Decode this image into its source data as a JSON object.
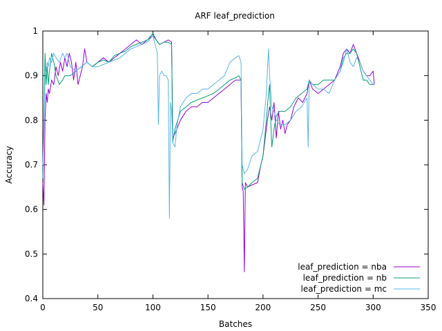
{
  "chart_data": {
    "type": "line",
    "title": "ARF leaf_prediction",
    "xlabel": "Batches",
    "ylabel": "Accuracy",
    "xlim": [
      0,
      350
    ],
    "ylim": [
      0.4,
      1.0
    ],
    "xticks": [
      0,
      50,
      100,
      150,
      200,
      250,
      300,
      350
    ],
    "yticks": [
      0.4,
      0.5,
      0.6,
      0.7,
      0.8,
      0.9,
      1.0
    ],
    "ytick_labels": [
      "0.4",
      "0.5",
      "0.6",
      "0.7",
      "0.8",
      "0.9",
      "1"
    ],
    "grid": false,
    "legend_position": "bottom-right",
    "series": [
      {
        "name": "leaf_prediction = nba",
        "color": "#9400d3",
        "points": [
          [
            0,
            0.66
          ],
          [
            1,
            0.61
          ],
          [
            2,
            0.8
          ],
          [
            3,
            0.86
          ],
          [
            4,
            0.84
          ],
          [
            5,
            0.87
          ],
          [
            6,
            0.86
          ],
          [
            8,
            0.89
          ],
          [
            10,
            0.88
          ],
          [
            12,
            0.92
          ],
          [
            14,
            0.9
          ],
          [
            16,
            0.93
          ],
          [
            18,
            0.91
          ],
          [
            20,
            0.94
          ],
          [
            22,
            0.92
          ],
          [
            24,
            0.95
          ],
          [
            26,
            0.93
          ],
          [
            28,
            0.89
          ],
          [
            30,
            0.93
          ],
          [
            32,
            0.88
          ],
          [
            34,
            0.9
          ],
          [
            36,
            0.92
          ],
          [
            38,
            0.96
          ],
          [
            40,
            0.93
          ],
          [
            45,
            0.92
          ],
          [
            50,
            0.93
          ],
          [
            55,
            0.94
          ],
          [
            60,
            0.93
          ],
          [
            65,
            0.94
          ],
          [
            70,
            0.95
          ],
          [
            75,
            0.96
          ],
          [
            80,
            0.97
          ],
          [
            85,
            0.98
          ],
          [
            90,
            0.97
          ],
          [
            95,
            0.98
          ],
          [
            100,
            0.99
          ],
          [
            103,
            0.98
          ],
          [
            106,
            0.97
          ],
          [
            110,
            0.975
          ],
          [
            114,
            0.98
          ],
          [
            117,
            0.975
          ],
          [
            118,
            0.76
          ],
          [
            120,
            0.77
          ],
          [
            125,
            0.8
          ],
          [
            130,
            0.82
          ],
          [
            135,
            0.83
          ],
          [
            140,
            0.83
          ],
          [
            145,
            0.84
          ],
          [
            150,
            0.84
          ],
          [
            155,
            0.85
          ],
          [
            160,
            0.86
          ],
          [
            165,
            0.87
          ],
          [
            170,
            0.88
          ],
          [
            175,
            0.89
          ],
          [
            178,
            0.89
          ],
          [
            180,
            0.89
          ],
          [
            181,
            0.65
          ],
          [
            182,
            0.64
          ],
          [
            183,
            0.46
          ],
          [
            184,
            0.66
          ],
          [
            186,
            0.65
          ],
          [
            190,
            0.655
          ],
          [
            195,
            0.66
          ],
          [
            198,
            0.7
          ],
          [
            200,
            0.72
          ],
          [
            202,
            0.76
          ],
          [
            204,
            0.8
          ],
          [
            206,
            0.83
          ],
          [
            208,
            0.8
          ],
          [
            210,
            0.84
          ],
          [
            212,
            0.76
          ],
          [
            214,
            0.82
          ],
          [
            216,
            0.78
          ],
          [
            218,
            0.8
          ],
          [
            220,
            0.77
          ],
          [
            222,
            0.79
          ],
          [
            225,
            0.8
          ],
          [
            228,
            0.83
          ],
          [
            232,
            0.85
          ],
          [
            236,
            0.84
          ],
          [
            240,
            0.86
          ],
          [
            242,
            0.89
          ],
          [
            245,
            0.87
          ],
          [
            250,
            0.86
          ],
          [
            255,
            0.87
          ],
          [
            260,
            0.88
          ],
          [
            265,
            0.89
          ],
          [
            270,
            0.92
          ],
          [
            273,
            0.95
          ],
          [
            276,
            0.96
          ],
          [
            279,
            0.95
          ],
          [
            282,
            0.97
          ],
          [
            285,
            0.95
          ],
          [
            288,
            0.93
          ],
          [
            291,
            0.91
          ],
          [
            294,
            0.9
          ],
          [
            297,
            0.9
          ],
          [
            300,
            0.91
          ],
          [
            301,
            0.88
          ]
        ]
      },
      {
        "name": "leaf_prediction = nb",
        "color": "#009e73",
        "points": [
          [
            0,
            0.67
          ],
          [
            1,
            0.8
          ],
          [
            2,
            0.95
          ],
          [
            3,
            0.88
          ],
          [
            4,
            0.92
          ],
          [
            5,
            0.88
          ],
          [
            6,
            0.91
          ],
          [
            8,
            0.95
          ],
          [
            10,
            0.93
          ],
          [
            12,
            0.9
          ],
          [
            15,
            0.88
          ],
          [
            18,
            0.89
          ],
          [
            20,
            0.9
          ],
          [
            25,
            0.9
          ],
          [
            30,
            0.91
          ],
          [
            35,
            0.92
          ],
          [
            40,
            0.93
          ],
          [
            45,
            0.92
          ],
          [
            50,
            0.93
          ],
          [
            55,
            0.935
          ],
          [
            60,
            0.93
          ],
          [
            65,
            0.945
          ],
          [
            70,
            0.95
          ],
          [
            75,
            0.955
          ],
          [
            80,
            0.965
          ],
          [
            85,
            0.97
          ],
          [
            90,
            0.975
          ],
          [
            95,
            0.98
          ],
          [
            100,
            0.995
          ],
          [
            103,
            0.98
          ],
          [
            106,
            0.97
          ],
          [
            110,
            0.975
          ],
          [
            114,
            0.975
          ],
          [
            117,
            0.97
          ],
          [
            118,
            0.75
          ],
          [
            120,
            0.78
          ],
          [
            125,
            0.82
          ],
          [
            130,
            0.83
          ],
          [
            135,
            0.84
          ],
          [
            140,
            0.845
          ],
          [
            145,
            0.85
          ],
          [
            150,
            0.855
          ],
          [
            155,
            0.86
          ],
          [
            160,
            0.87
          ],
          [
            165,
            0.88
          ],
          [
            170,
            0.89
          ],
          [
            175,
            0.895
          ],
          [
            178,
            0.9
          ],
          [
            180,
            0.89
          ],
          [
            181,
            0.66
          ],
          [
            183,
            0.645
          ],
          [
            186,
            0.65
          ],
          [
            190,
            0.66
          ],
          [
            195,
            0.67
          ],
          [
            200,
            0.72
          ],
          [
            203,
            0.8
          ],
          [
            205,
            0.86
          ],
          [
            206,
            0.88
          ],
          [
            207,
            0.8
          ],
          [
            208,
            0.74
          ],
          [
            210,
            0.78
          ],
          [
            212,
            0.81
          ],
          [
            215,
            0.82
          ],
          [
            220,
            0.82
          ],
          [
            225,
            0.83
          ],
          [
            230,
            0.85
          ],
          [
            235,
            0.86
          ],
          [
            240,
            0.87
          ],
          [
            242,
            0.89
          ],
          [
            245,
            0.88
          ],
          [
            250,
            0.88
          ],
          [
            255,
            0.89
          ],
          [
            260,
            0.89
          ],
          [
            265,
            0.89
          ],
          [
            270,
            0.91
          ],
          [
            273,
            0.94
          ],
          [
            276,
            0.95
          ],
          [
            279,
            0.95
          ],
          [
            282,
            0.96
          ],
          [
            285,
            0.95
          ],
          [
            288,
            0.92
          ],
          [
            291,
            0.89
          ],
          [
            294,
            0.89
          ],
          [
            297,
            0.88
          ],
          [
            300,
            0.88
          ],
          [
            301,
            0.88
          ]
        ]
      },
      {
        "name": "leaf_prediction = mc",
        "color": "#56b4e9",
        "points": [
          [
            0,
            0.7
          ],
          [
            1,
            0.78
          ],
          [
            2,
            0.9
          ],
          [
            3,
            0.91
          ],
          [
            4,
            0.93
          ],
          [
            5,
            0.92
          ],
          [
            6,
            0.94
          ],
          [
            8,
            0.93
          ],
          [
            10,
            0.95
          ],
          [
            12,
            0.94
          ],
          [
            15,
            0.93
          ],
          [
            18,
            0.95
          ],
          [
            20,
            0.94
          ],
          [
            22,
            0.95
          ],
          [
            25,
            0.92
          ],
          [
            30,
            0.91
          ],
          [
            35,
            0.92
          ],
          [
            40,
            0.93
          ],
          [
            45,
            0.92
          ],
          [
            50,
            0.92
          ],
          [
            55,
            0.925
          ],
          [
            60,
            0.93
          ],
          [
            65,
            0.935
          ],
          [
            70,
            0.94
          ],
          [
            75,
            0.95
          ],
          [
            80,
            0.96
          ],
          [
            85,
            0.965
          ],
          [
            90,
            0.97
          ],
          [
            95,
            0.975
          ],
          [
            100,
            0.99
          ],
          [
            102,
            0.97
          ],
          [
            104,
            0.95
          ],
          [
            105,
            0.79
          ],
          [
            106,
            0.9
          ],
          [
            108,
            0.91
          ],
          [
            110,
            0.9
          ],
          [
            112,
            0.9
          ],
          [
            114,
            0.89
          ],
          [
            115,
            0.58
          ],
          [
            116,
            0.84
          ],
          [
            117,
            0.82
          ],
          [
            118,
            0.75
          ],
          [
            120,
            0.74
          ],
          [
            122,
            0.79
          ],
          [
            125,
            0.83
          ],
          [
            130,
            0.85
          ],
          [
            135,
            0.86
          ],
          [
            140,
            0.86
          ],
          [
            145,
            0.87
          ],
          [
            150,
            0.87
          ],
          [
            155,
            0.88
          ],
          [
            160,
            0.89
          ],
          [
            165,
            0.9
          ],
          [
            170,
            0.93
          ],
          [
            175,
            0.94
          ],
          [
            178,
            0.945
          ],
          [
            180,
            0.93
          ],
          [
            181,
            0.7
          ],
          [
            183,
            0.68
          ],
          [
            186,
            0.69
          ],
          [
            190,
            0.72
          ],
          [
            195,
            0.73
          ],
          [
            200,
            0.78
          ],
          [
            203,
            0.86
          ],
          [
            205,
            0.96
          ],
          [
            206,
            0.9
          ],
          [
            208,
            0.83
          ],
          [
            210,
            0.82
          ],
          [
            212,
            0.8
          ],
          [
            215,
            0.79
          ],
          [
            220,
            0.79
          ],
          [
            225,
            0.8
          ],
          [
            230,
            0.82
          ],
          [
            235,
            0.83
          ],
          [
            240,
            0.85
          ],
          [
            241,
            0.74
          ],
          [
            242,
            0.89
          ],
          [
            245,
            0.88
          ],
          [
            250,
            0.87
          ],
          [
            255,
            0.87
          ],
          [
            260,
            0.86
          ],
          [
            265,
            0.89
          ],
          [
            270,
            0.91
          ],
          [
            273,
            0.93
          ],
          [
            276,
            0.96
          ],
          [
            279,
            0.93
          ],
          [
            282,
            0.92
          ],
          [
            285,
            0.94
          ],
          [
            288,
            0.93
          ],
          [
            291,
            0.91
          ],
          [
            294,
            0.9
          ],
          [
            297,
            0.89
          ],
          [
            300,
            0.88
          ],
          [
            301,
            0.88
          ]
        ]
      }
    ]
  }
}
